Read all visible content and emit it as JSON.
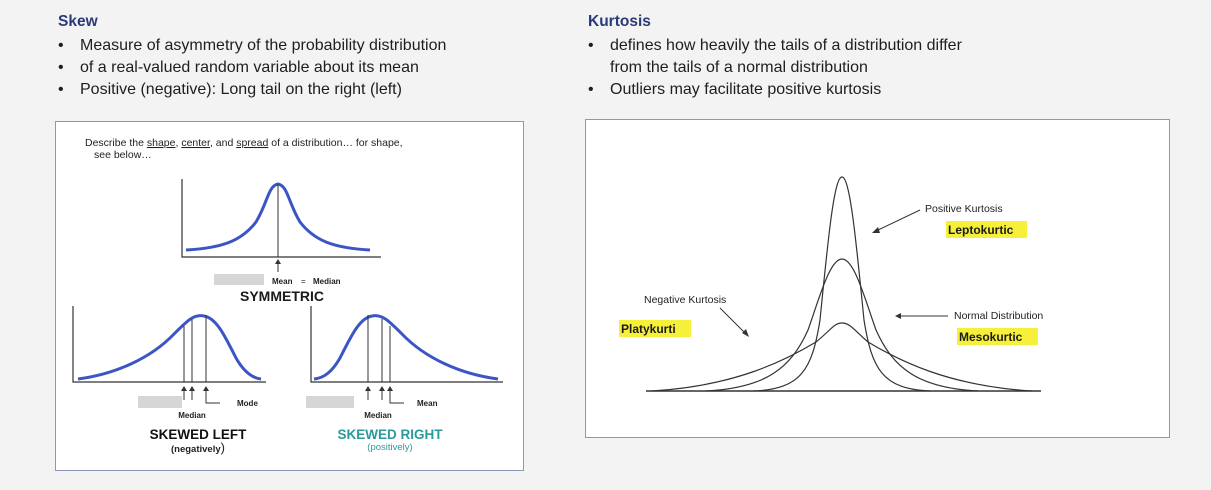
{
  "skew": {
    "heading": "Skew",
    "bullets": [
      "Measure of asymmetry of the probability distribution",
      "of a real-valued random variable about its mean",
      "Positive (negative): Long tail on the right (left)"
    ],
    "figure": {
      "intro_pre": "Describe the ",
      "intro_shape": "shape",
      "intro_sep1": ", ",
      "intro_center": "center",
      "intro_sep2": ", and ",
      "intro_spread": "spread",
      "intro_post": " of a distribution… for shape,",
      "intro_line2": "see below…",
      "symmetric": {
        "mean": "Mean",
        "equals": "=",
        "median": "Median",
        "title": "SYMMETRIC"
      },
      "left": {
        "mode": "Mode",
        "median": "Median",
        "title": "SKEWED LEFT",
        "subtitle_open": "(negatively",
        "subtitle_close": ")"
      },
      "right": {
        "mean": "Mean",
        "median": "Median",
        "title": "SKEWED RIGHT",
        "subtitle": "(positively)"
      }
    }
  },
  "kurtosis": {
    "heading": "Kurtosis",
    "bullets": [
      "defines how heavily the tails of a distribution differ",
      "from the tails of a normal distribution",
      "Outliers may facilitate positive kurtosis"
    ],
    "figure": {
      "positive_label": "Positive Kurtosis",
      "leptokurtic": "Leptokurtic",
      "negative_label": "Negative Kurtosis",
      "platykurtic": "Platykurti",
      "normal_label": "Normal Distribution",
      "mesokurtic": "Mesokurtic"
    }
  },
  "colors": {
    "heading": "#2b3a78",
    "curve_blue": "#3b56c4",
    "skewed_right_teal": "#2a9a9a",
    "highlight": "#f6f03a"
  }
}
